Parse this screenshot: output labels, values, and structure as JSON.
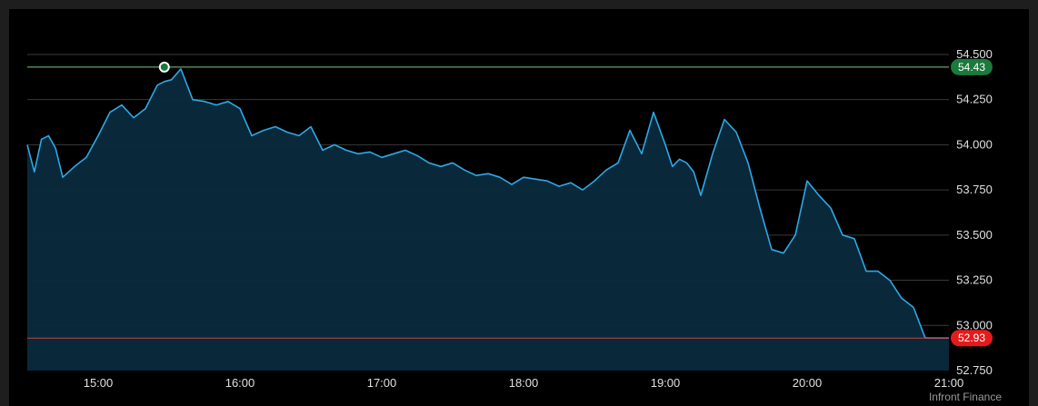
{
  "source": "Infront Finance",
  "chart_data": {
    "type": "area",
    "x_ticks": [
      "15:00",
      "16:00",
      "17:00",
      "18:00",
      "19:00",
      "20:00",
      "21:00"
    ],
    "y_ticks": [
      "54.500",
      "54.250",
      "54.000",
      "53.750",
      "53.500",
      "53.250",
      "53.000",
      "52.750"
    ],
    "ylim": [
      52.75,
      54.55
    ],
    "xlim": [
      "14:30",
      "21:00"
    ],
    "grid": true,
    "high": {
      "label": "54.43",
      "value": 54.43,
      "time": "15:28",
      "color": "#1a7a3c"
    },
    "low": {
      "label": "52.93",
      "value": 52.93,
      "color": "#e51b1b"
    },
    "colors": {
      "line": "#2ea8e6",
      "fill": "#0a2a3d"
    },
    "series": [
      {
        "x": [
          "14:30",
          "14:33",
          "14:36",
          "14:39",
          "14:42",
          "14:45",
          "14:50",
          "14:55",
          "15:00",
          "15:05",
          "15:10",
          "15:15",
          "15:20",
          "15:25",
          "15:28",
          "15:31",
          "15:35",
          "15:40",
          "15:45",
          "15:50",
          "15:55",
          "16:00",
          "16:05",
          "16:10",
          "16:15",
          "16:20",
          "16:25",
          "16:30",
          "16:35",
          "16:40",
          "16:45",
          "16:50",
          "16:55",
          "17:00",
          "17:05",
          "17:10",
          "17:15",
          "17:20",
          "17:25",
          "17:30",
          "17:35",
          "17:40",
          "17:45",
          "17:50",
          "17:55",
          "18:00",
          "18:05",
          "18:10",
          "18:15",
          "18:20",
          "18:25",
          "18:30",
          "18:35",
          "18:40",
          "18:45",
          "18:50",
          "18:55",
          "19:00",
          "19:03",
          "19:06",
          "19:09",
          "19:12",
          "19:15",
          "19:20",
          "19:25",
          "19:30",
          "19:35",
          "19:40",
          "19:45",
          "19:50",
          "19:55",
          "20:00",
          "20:05",
          "20:10",
          "20:15",
          "20:20",
          "20:25",
          "20:30",
          "20:35",
          "20:40",
          "20:45",
          "20:50",
          "20:55",
          "21:00"
        ],
        "y": [
          54.0,
          53.85,
          54.03,
          54.05,
          53.98,
          53.82,
          53.88,
          53.93,
          54.05,
          54.18,
          54.22,
          54.15,
          54.2,
          54.33,
          54.35,
          54.36,
          54.42,
          54.25,
          54.24,
          54.22,
          54.24,
          54.2,
          54.05,
          54.08,
          54.1,
          54.07,
          54.05,
          54.1,
          53.97,
          54.0,
          53.97,
          53.95,
          53.96,
          53.93,
          53.95,
          53.97,
          53.94,
          53.9,
          53.88,
          53.9,
          53.86,
          53.83,
          53.84,
          53.82,
          53.78,
          53.82,
          53.81,
          53.8,
          53.77,
          53.79,
          53.75,
          53.8,
          53.86,
          53.9,
          54.08,
          53.95,
          54.18,
          54.0,
          53.88,
          53.92,
          53.9,
          53.85,
          53.72,
          53.95,
          54.14,
          54.07,
          53.9,
          53.65,
          53.42,
          53.4,
          53.5,
          53.8,
          53.72,
          53.65,
          53.5,
          53.48,
          53.3,
          53.3,
          53.25,
          53.15,
          53.1,
          52.93,
          52.93,
          52.93
        ]
      }
    ]
  }
}
